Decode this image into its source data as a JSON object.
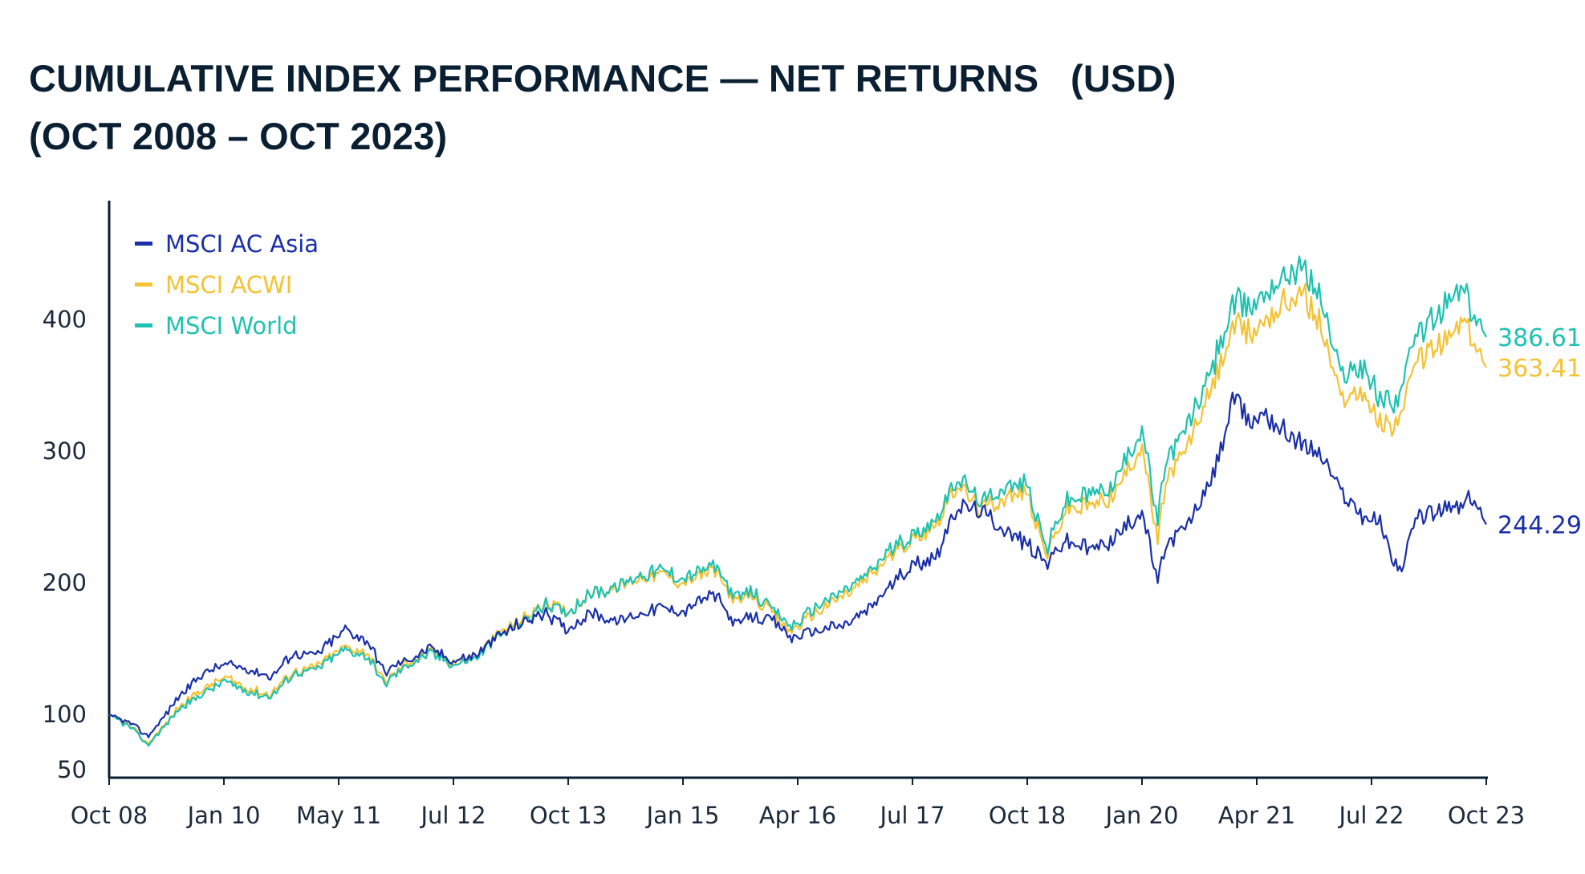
{
  "title": {
    "line1": "CUMULATIVE INDEX PERFORMANCE — NET RETURNS   (USD)",
    "line2": "(OCT 2008 – OCT 2023)"
  },
  "colors": {
    "asia": "#1a2fa8",
    "acwi": "#f5c233",
    "world": "#1fc2b0",
    "axis": "#0b1f33",
    "text": "#1b2a3a"
  },
  "chart_data": {
    "type": "line",
    "title": "CUMULATIVE INDEX PERFORMANCE — NET RETURNS (USD) (OCT 2008 – OCT 2023)",
    "xlabel": "",
    "ylabel": "",
    "ylim": [
      50,
      480
    ],
    "yticks": [
      50,
      100,
      200,
      300,
      400
    ],
    "grid": false,
    "legend_position": "top-left",
    "x_ticks": [
      "Oct 08",
      "Jan 10",
      "May 11",
      "Jul 12",
      "Oct 13",
      "Jan 15",
      "Apr 16",
      "Jul 17",
      "Oct 18",
      "Jan 20",
      "Apr 21",
      "Jul 22",
      "Oct 23"
    ],
    "x": [
      2008.75,
      2009.0,
      2009.17,
      2009.5,
      2009.75,
      2010.0,
      2010.25,
      2010.5,
      2010.75,
      2011.0,
      2011.33,
      2011.58,
      2011.75,
      2012.0,
      2012.25,
      2012.5,
      2012.75,
      2013.0,
      2013.25,
      2013.5,
      2013.75,
      2014.0,
      2014.25,
      2014.5,
      2014.75,
      2015.0,
      2015.33,
      2015.58,
      2015.75,
      2016.0,
      2016.17,
      2016.5,
      2016.75,
      2017.0,
      2017.25,
      2017.5,
      2017.75,
      2018.0,
      2018.25,
      2018.5,
      2018.75,
      2018.96,
      2019.17,
      2019.42,
      2019.67,
      2019.92,
      2020.0,
      2020.17,
      2020.25,
      2020.5,
      2020.75,
      2021.0,
      2021.17,
      2021.33,
      2021.5,
      2021.75,
      2021.92,
      2022.17,
      2022.42,
      2022.58,
      2022.75,
      2022.83,
      2023.0,
      2023.25,
      2023.5,
      2023.58,
      2023.75
    ],
    "series": [
      {
        "name": "MSCI AC Asia",
        "color": "#1a2fa8",
        "end_label": "244.29",
        "values": [
          100,
          91,
          80,
          113,
          130,
          138,
          135,
          128,
          146,
          145,
          165,
          155,
          132,
          142,
          150,
          140,
          145,
          160,
          170,
          177,
          165,
          178,
          170,
          176,
          181,
          178,
          192,
          168,
          175,
          170,
          158,
          165,
          168,
          178,
          197,
          214,
          220,
          258,
          255,
          240,
          230,
          215,
          232,
          225,
          232,
          248,
          255,
          200,
          228,
          245,
          275,
          340,
          320,
          330,
          318,
          305,
          300,
          270,
          250,
          248,
          215,
          210,
          250,
          255,
          258,
          265,
          244.29
        ]
      },
      {
        "name": "MSCI ACWI",
        "color": "#f5c233",
        "end_label": "363.41",
        "values": [
          100,
          88,
          73,
          105,
          118,
          128,
          120,
          115,
          132,
          136,
          152,
          145,
          125,
          140,
          148,
          140,
          145,
          162,
          172,
          185,
          178,
          192,
          195,
          203,
          207,
          200,
          210,
          185,
          190,
          175,
          163,
          180,
          190,
          202,
          220,
          232,
          245,
          275,
          255,
          265,
          268,
          220,
          255,
          258,
          265,
          295,
          305,
          230,
          275,
          305,
          345,
          395,
          390,
          400,
          410,
          420,
          400,
          340,
          345,
          320,
          320,
          330,
          370,
          380,
          400,
          385,
          363.41
        ]
      },
      {
        "name": "MSCI World",
        "color": "#1fc2b0",
        "end_label": "386.61",
        "values": [
          100,
          87,
          72,
          103,
          115,
          125,
          118,
          113,
          130,
          134,
          150,
          143,
          123,
          138,
          146,
          138,
          143,
          160,
          170,
          183,
          178,
          192,
          196,
          205,
          210,
          203,
          213,
          188,
          193,
          178,
          166,
          184,
          194,
          206,
          224,
          236,
          248,
          280,
          260,
          272,
          275,
          225,
          262,
          266,
          273,
          305,
          318,
          245,
          290,
          320,
          360,
          412,
          410,
          420,
          432,
          440,
          420,
          358,
          365,
          340,
          338,
          350,
          390,
          405,
          425,
          408,
          386.61
        ]
      }
    ]
  }
}
